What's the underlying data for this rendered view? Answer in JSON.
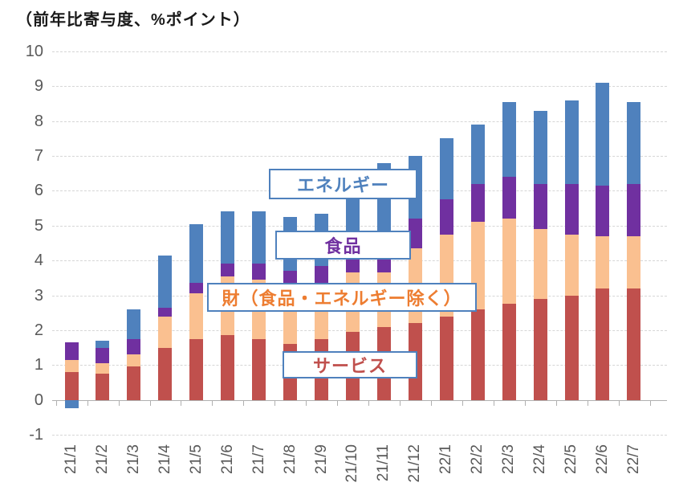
{
  "title": "（前年比寄与度、%ポイント）",
  "chart_data": {
    "type": "bar",
    "stacked": true,
    "title": "（前年比寄与度、%ポイント）",
    "xlabel": "",
    "ylabel": "前年比寄与度、%ポイント",
    "ylim": [
      -1,
      10
    ],
    "y_ticks": [
      10,
      9,
      8,
      7,
      6,
      5,
      4,
      3,
      2,
      1,
      0,
      -1
    ],
    "grid": "horizontal-dashed",
    "categories": [
      "21/1",
      "21/2",
      "21/3",
      "21/4",
      "21/5",
      "21/6",
      "21/7",
      "21/8",
      "21/9",
      "21/10",
      "21/11",
      "21/12",
      "22/1",
      "22/2",
      "22/3",
      "22/4",
      "22/5",
      "22/6",
      "22/7"
    ],
    "series": [
      {
        "id": "services",
        "name": "サービス",
        "color": "#C0504D",
        "values": [
          0.8,
          0.75,
          0.95,
          1.5,
          1.75,
          1.85,
          1.75,
          1.6,
          1.75,
          1.95,
          2.1,
          2.2,
          2.4,
          2.6,
          2.75,
          2.9,
          3.0,
          3.2,
          3.2
        ]
      },
      {
        "id": "goods-ex-food-energy",
        "name": "財（食品・エネルギー除く）",
        "color": "#FAC090",
        "values": [
          0.35,
          0.3,
          0.35,
          0.9,
          1.3,
          1.7,
          1.7,
          1.6,
          1.5,
          1.7,
          1.55,
          2.15,
          2.35,
          2.5,
          2.45,
          2.0,
          1.75,
          1.5,
          1.5
        ]
      },
      {
        "id": "food",
        "name": "食品",
        "color": "#7030A0",
        "values": [
          0.5,
          0.45,
          0.45,
          0.25,
          0.3,
          0.35,
          0.45,
          0.5,
          0.6,
          0.75,
          0.85,
          0.85,
          1.0,
          1.1,
          1.2,
          1.3,
          1.45,
          1.45,
          1.5
        ]
      },
      {
        "id": "energy",
        "name": "エネルギー",
        "color": "#4F81BD",
        "values": [
          -0.25,
          0.2,
          0.85,
          1.5,
          1.7,
          1.5,
          1.5,
          1.55,
          1.5,
          1.8,
          2.3,
          1.8,
          1.75,
          1.7,
          2.15,
          2.1,
          2.4,
          2.95,
          2.35
        ]
      }
    ],
    "totals": [
      1.4,
      1.7,
      2.6,
      4.2,
      5.0,
      5.4,
      5.4,
      5.3,
      5.4,
      6.2,
      6.8,
      7.0,
      7.5,
      7.9,
      8.55,
      8.3,
      8.6,
      9.1,
      8.55
    ],
    "legend_position": "floating-labels-inside-plot",
    "legend": [
      {
        "id": "energy",
        "label": "エネルギー",
        "text_color": "#4F81BD"
      },
      {
        "id": "food",
        "label": "食品",
        "text_color": "#7030A0"
      },
      {
        "id": "goods-ex-food-energy",
        "label": "財（食品・エネルギー除く）",
        "text_color": "#ED7D31"
      },
      {
        "id": "services",
        "label": "サービス",
        "text_color": "#C0504D"
      }
    ],
    "axis_colors": {
      "tick_label": "#595959",
      "axis_line": "#b0b0b0",
      "gridline": "#d6d6d6"
    }
  }
}
